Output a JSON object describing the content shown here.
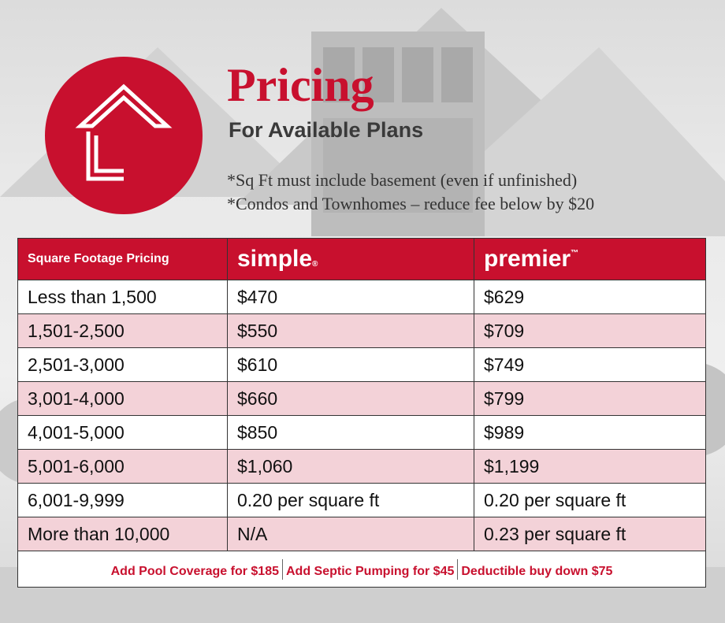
{
  "header": {
    "title": "Pricing",
    "subtitle": "For Available Plans",
    "notes": [
      "*Sq Ft must include basement (even if unfinished)",
      "*Condos and Townhomes – reduce fee below by $20"
    ],
    "logo_icon": "house-outline-icon",
    "brand_color": "#c8102e"
  },
  "table": {
    "header_label": "Square Footage Pricing",
    "plans": [
      {
        "name": "simple",
        "mark": "®"
      },
      {
        "name": "premier",
        "mark": "™"
      }
    ],
    "rows": [
      {
        "range": "Less than 1,500",
        "simple": "$470",
        "premier": "$629"
      },
      {
        "range": "1,501-2,500",
        "simple": "$550",
        "premier": "$709"
      },
      {
        "range": "2,501-3,000",
        "simple": "$610",
        "premier": "$749"
      },
      {
        "range": "3,001-4,000",
        "simple": "$660",
        "premier": "$799"
      },
      {
        "range": "4,001-5,000",
        "simple": "$850",
        "premier": "$989"
      },
      {
        "range": "5,001-6,000",
        "simple": "$1,060",
        "premier": "$1,199"
      },
      {
        "range": "6,001-9,999",
        "simple": "0.20 per square ft",
        "premier": "0.20 per square ft"
      },
      {
        "range": "More than 10,000",
        "simple": "N/A",
        "premier": "0.23 per square ft"
      }
    ],
    "row_stripe_color": "#f3d2d8"
  },
  "addons": [
    "Add Pool Coverage for $185",
    "Add Septic Pumping for $45",
    "Deductible buy down $75"
  ]
}
